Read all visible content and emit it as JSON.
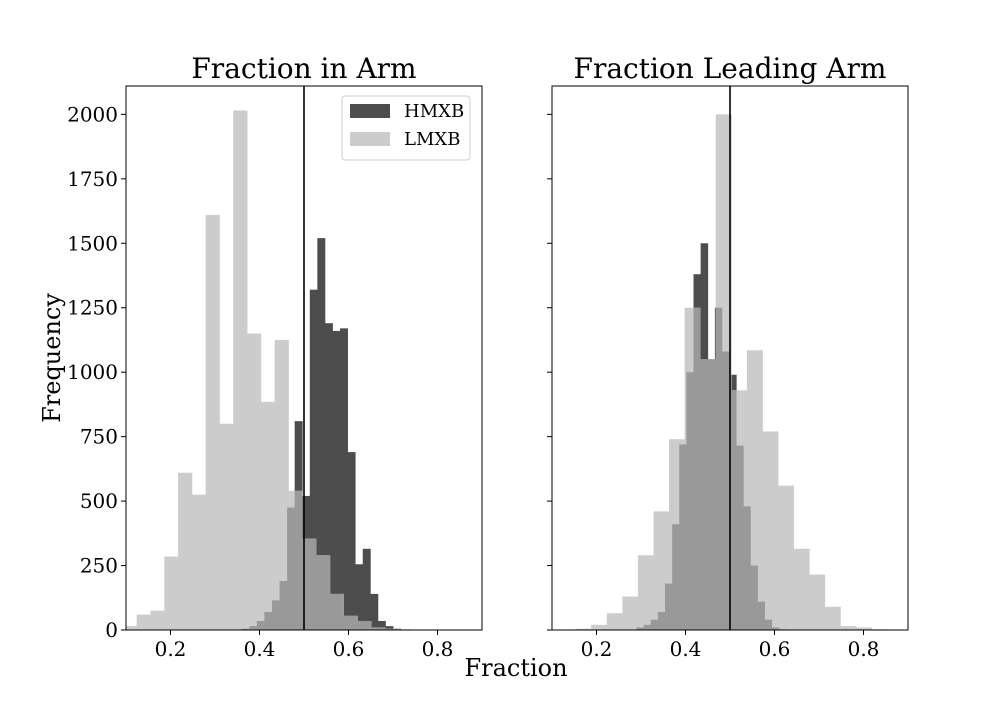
{
  "figure": {
    "xlabel": "Fraction",
    "ylabel": "Frequency",
    "colors": {
      "HMXB": "#4d4d4d",
      "LMXB": "#cccccc",
      "overlap": "#999999"
    }
  },
  "chart_data": [
    {
      "type": "bar",
      "title": "Fraction in Arm",
      "xlim": [
        0.1,
        0.9
      ],
      "ylim": [
        0,
        2110
      ],
      "xticks": [
        0.2,
        0.4,
        0.6,
        0.8
      ],
      "xtick_labels": [
        "0.2",
        "0.4",
        "0.6",
        "0.8"
      ],
      "yticks": [
        0,
        250,
        500,
        750,
        1000,
        1250,
        1500,
        1750,
        2000
      ],
      "ytick_labels": [
        "0",
        "250",
        "500",
        "750",
        "1000",
        "1250",
        "1500",
        "1750",
        "2000"
      ],
      "vline": 0.5,
      "legend": {
        "placement": "top-right",
        "entries": [
          "HMXB",
          "LMXB"
        ]
      },
      "series": [
        {
          "name": "HMXB",
          "bins": [
            [
              0.36,
              0.377,
              5
            ],
            [
              0.377,
              0.394,
              15
            ],
            [
              0.394,
              0.411,
              35
            ],
            [
              0.411,
              0.428,
              70
            ],
            [
              0.428,
              0.445,
              115
            ],
            [
              0.445,
              0.462,
              190
            ],
            [
              0.462,
              0.479,
              475
            ],
            [
              0.479,
              0.496,
              810
            ],
            [
              0.496,
              0.513,
              520
            ],
            [
              0.513,
              0.53,
              1320
            ],
            [
              0.53,
              0.547,
              1520
            ],
            [
              0.547,
              0.564,
              1190
            ],
            [
              0.564,
              0.581,
              1160
            ],
            [
              0.581,
              0.598,
              1170
            ],
            [
              0.598,
              0.615,
              690
            ],
            [
              0.615,
              0.632,
              255
            ],
            [
              0.632,
              0.649,
              315
            ],
            [
              0.649,
              0.666,
              140
            ],
            [
              0.666,
              0.683,
              35
            ],
            [
              0.683,
              0.7,
              15
            ],
            [
              0.7,
              0.717,
              5
            ]
          ]
        },
        {
          "name": "LMXB",
          "bins": [
            [
              0.093,
              0.124,
              15
            ],
            [
              0.124,
              0.155,
              60
            ],
            [
              0.155,
              0.186,
              75
            ],
            [
              0.186,
              0.217,
              285
            ],
            [
              0.217,
              0.248,
              610
            ],
            [
              0.248,
              0.279,
              525
            ],
            [
              0.279,
              0.31,
              1610
            ],
            [
              0.31,
              0.341,
              800
            ],
            [
              0.341,
              0.372,
              2015
            ],
            [
              0.372,
              0.403,
              1150
            ],
            [
              0.403,
              0.434,
              885
            ],
            [
              0.434,
              0.465,
              1125
            ],
            [
              0.465,
              0.496,
              540
            ],
            [
              0.496,
              0.527,
              355
            ],
            [
              0.527,
              0.558,
              290
            ],
            [
              0.558,
              0.589,
              140
            ],
            [
              0.589,
              0.62,
              55
            ],
            [
              0.62,
              0.651,
              35
            ],
            [
              0.651,
              0.682,
              10
            ],
            [
              0.682,
              0.713,
              5
            ],
            [
              0.713,
              0.744,
              3
            ]
          ]
        }
      ]
    },
    {
      "type": "bar",
      "title": "Fraction Leading Arm",
      "xlim": [
        0.1,
        0.9
      ],
      "ylim": [
        0,
        2110
      ],
      "xticks": [
        0.2,
        0.4,
        0.6,
        0.8
      ],
      "xtick_labels": [
        "0.2",
        "0.4",
        "0.6",
        "0.8"
      ],
      "yticks": [
        0,
        250,
        500,
        750,
        1000,
        1250,
        1500,
        1750,
        2000
      ],
      "ytick_labels": [],
      "vline": 0.5,
      "series": [
        {
          "name": "HMXB",
          "bins": [
            [
              0.29,
              0.306,
              10
            ],
            [
              0.306,
              0.322,
              20
            ],
            [
              0.322,
              0.338,
              40
            ],
            [
              0.338,
              0.354,
              70
            ],
            [
              0.354,
              0.37,
              180
            ],
            [
              0.37,
              0.386,
              410
            ],
            [
              0.386,
              0.402,
              720
            ],
            [
              0.402,
              0.418,
              1000
            ],
            [
              0.418,
              0.434,
              1380
            ],
            [
              0.434,
              0.45,
              1500
            ],
            [
              0.45,
              0.466,
              1050
            ],
            [
              0.466,
              0.482,
              1250
            ],
            [
              0.482,
              0.498,
              1080
            ],
            [
              0.498,
              0.514,
              990
            ],
            [
              0.514,
              0.53,
              715
            ],
            [
              0.53,
              0.546,
              480
            ],
            [
              0.546,
              0.562,
              250
            ],
            [
              0.562,
              0.578,
              110
            ],
            [
              0.578,
              0.594,
              40
            ],
            [
              0.594,
              0.61,
              10
            ],
            [
              0.61,
              0.626,
              3
            ]
          ]
        },
        {
          "name": "LMXB",
          "bins": [
            [
              0.153,
              0.188,
              5
            ],
            [
              0.188,
              0.223,
              20
            ],
            [
              0.223,
              0.258,
              65
            ],
            [
              0.258,
              0.293,
              130
            ],
            [
              0.293,
              0.328,
              290
            ],
            [
              0.328,
              0.363,
              460
            ],
            [
              0.363,
              0.398,
              740
            ],
            [
              0.398,
              0.433,
              1250
            ],
            [
              0.433,
              0.468,
              1050
            ],
            [
              0.468,
              0.503,
              2000
            ],
            [
              0.503,
              0.538,
              930
            ],
            [
              0.538,
              0.573,
              1085
            ],
            [
              0.573,
              0.608,
              770
            ],
            [
              0.608,
              0.643,
              560
            ],
            [
              0.643,
              0.678,
              315
            ],
            [
              0.678,
              0.713,
              215
            ],
            [
              0.713,
              0.748,
              90
            ],
            [
              0.748,
              0.783,
              15
            ],
            [
              0.783,
              0.818,
              10
            ],
            [
              0.818,
              0.853,
              3
            ]
          ]
        }
      ]
    }
  ]
}
